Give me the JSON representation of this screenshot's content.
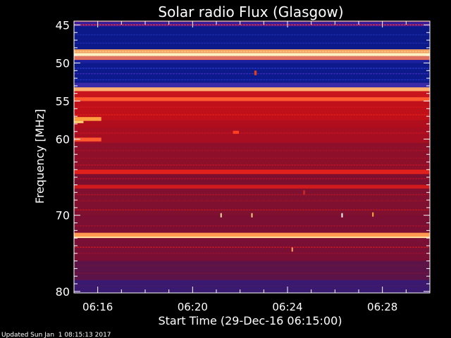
{
  "chart_data": {
    "type": "heatmap",
    "title": "Solar radio Flux (Glasgow)",
    "xlabel": "Start Time (29-Dec-16 06:15:00)",
    "ylabel": "Frequency [MHz]",
    "footer": "Updated Sun Jan  1 08:15:13 2017",
    "x_range_minutes": [
      0,
      15
    ],
    "x_ticks": [
      {
        "minute": 1,
        "label": "06:16"
      },
      {
        "minute": 5,
        "label": "06:20"
      },
      {
        "minute": 9,
        "label": "06:24"
      },
      {
        "minute": 13,
        "label": "06:28"
      }
    ],
    "y_range_mhz": [
      44.5,
      80.2
    ],
    "y_reversed": true,
    "y_ticks": [
      45,
      50,
      55,
      60,
      70,
      80
    ],
    "colors": {
      "background": "#000000",
      "axis": "#ffffff",
      "plot_bg": "#8a0f2b",
      "low": "#0a147a",
      "mid": "#b0101c",
      "high": "#ffd27a"
    },
    "bands": [
      {
        "from": 44.6,
        "to": 45.2,
        "color": "#3a1d9a"
      },
      {
        "from": 45.2,
        "to": 48.2,
        "color": "#0b1a88"
      },
      {
        "from": 48.2,
        "to": 48.7,
        "color": "#f0a060"
      },
      {
        "from": 48.7,
        "to": 49.1,
        "color": "#fff2c0"
      },
      {
        "from": 49.1,
        "to": 49.6,
        "color": "#e07060"
      },
      {
        "from": 49.6,
        "to": 50.0,
        "color": "#1a20a0"
      },
      {
        "from": 50.0,
        "to": 52.6,
        "color": "#0d1a8c"
      },
      {
        "from": 52.6,
        "to": 53.2,
        "color": "#3a2aa8"
      },
      {
        "from": 53.2,
        "to": 53.7,
        "color": "#ffb070"
      },
      {
        "from": 53.7,
        "to": 54.5,
        "color": "#c8141c"
      },
      {
        "from": 54.5,
        "to": 55.0,
        "color": "#ff5a30"
      },
      {
        "from": 55.0,
        "to": 57.5,
        "color": "#c0101a"
      },
      {
        "from": 57.5,
        "to": 58.5,
        "color": "#b00e1c"
      },
      {
        "from": 58.5,
        "to": 60.5,
        "color": "#a80e22"
      },
      {
        "from": 60.5,
        "to": 64.0,
        "color": "#8e0f2a"
      },
      {
        "from": 64.0,
        "to": 64.6,
        "color": "#e0201c"
      },
      {
        "from": 64.6,
        "to": 66.0,
        "color": "#7a0f30"
      },
      {
        "from": 66.0,
        "to": 66.5,
        "color": "#d01a1c"
      },
      {
        "from": 66.5,
        "to": 70.0,
        "color": "#801030"
      },
      {
        "from": 70.0,
        "to": 72.3,
        "color": "#7a0f33"
      },
      {
        "from": 72.3,
        "to": 72.8,
        "color": "#ff9a50"
      },
      {
        "from": 72.8,
        "to": 73.0,
        "color": "#ffe0a0"
      },
      {
        "from": 73.0,
        "to": 76.0,
        "color": "#7a0f35"
      },
      {
        "from": 76.0,
        "to": 78.5,
        "color": "#5c1448"
      },
      {
        "from": 78.5,
        "to": 80.2,
        "color": "#3a1a70"
      }
    ],
    "lines": [
      {
        "mhz": 45.0,
        "color": "#ff3030"
      },
      {
        "mhz": 46.3,
        "color": "#1e2ab0"
      },
      {
        "mhz": 47.4,
        "color": "#1e2ab0"
      },
      {
        "mhz": 48.5,
        "color": "#ffcc88"
      },
      {
        "mhz": 50.7,
        "color": "#2a38c8"
      },
      {
        "mhz": 51.4,
        "color": "#3a2ab8"
      },
      {
        "mhz": 52.2,
        "color": "#2030c0"
      },
      {
        "mhz": 55.8,
        "color": "#d8181c"
      },
      {
        "mhz": 56.8,
        "color": "#e02018"
      },
      {
        "mhz": 59.2,
        "color": "#c81420"
      },
      {
        "mhz": 61.5,
        "color": "#b01424"
      },
      {
        "mhz": 62.5,
        "color": "#a01228"
      },
      {
        "mhz": 63.4,
        "color": "#b81424"
      },
      {
        "mhz": 65.2,
        "color": "#c01220"
      },
      {
        "mhz": 67.3,
        "color": "#b01226"
      },
      {
        "mhz": 68.1,
        "color": "#a01228"
      },
      {
        "mhz": 69.3,
        "color": "#c01420"
      },
      {
        "mhz": 71.4,
        "color": "#a8122a"
      },
      {
        "mhz": 74.2,
        "color": "#d01a20"
      },
      {
        "mhz": 75.0,
        "color": "#9a1230"
      },
      {
        "mhz": 76.6,
        "color": "#6a1440"
      },
      {
        "mhz": 77.6,
        "color": "#7a1438"
      },
      {
        "mhz": 79.3,
        "color": "#4a1a60"
      }
    ],
    "features": [
      {
        "x0": 0.0,
        "x1": 1.15,
        "from": 57.1,
        "to": 57.6,
        "color": "#ffa040"
      },
      {
        "x0": 0.0,
        "x1": 0.4,
        "from": 57.6,
        "to": 57.9,
        "color": "#ffd070"
      },
      {
        "x0": 0.0,
        "x1": 1.15,
        "from": 59.8,
        "to": 60.3,
        "color": "#ff5a30"
      },
      {
        "x0": 6.7,
        "x1": 6.95,
        "from": 58.9,
        "to": 59.3,
        "color": "#ff4020"
      },
      {
        "x0": 7.6,
        "x1": 7.7,
        "from": 51.0,
        "to": 51.6,
        "color": "#e0401a"
      }
    ],
    "spikes": [
      {
        "minute": 6.2,
        "mhz": 70.0,
        "color": "#ffe0a0"
      },
      {
        "minute": 7.5,
        "mhz": 70.0,
        "color": "#ffd080"
      },
      {
        "minute": 11.3,
        "mhz": 70.0,
        "color": "#ffffff"
      },
      {
        "minute": 12.6,
        "mhz": 69.9,
        "color": "#ffb040"
      },
      {
        "minute": 9.2,
        "mhz": 74.5,
        "color": "#ffa060"
      },
      {
        "minute": 9.7,
        "mhz": 67.0,
        "color": "#e03020"
      }
    ]
  }
}
